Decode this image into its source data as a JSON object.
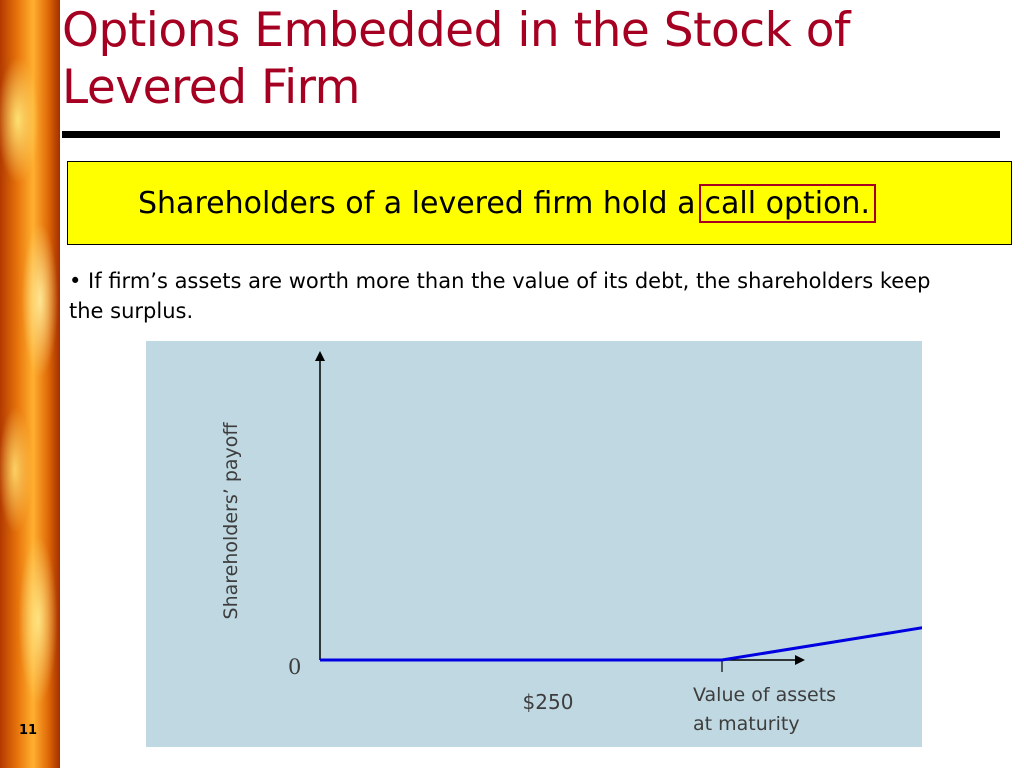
{
  "slide": {
    "number": "11",
    "title": "Options Embedded in the Stock of Levered Firm",
    "callout": {
      "text": "Shareholders of a levered firm hold a",
      "highlight": "call option",
      "highlight_color": "#a50021",
      "background": "#ffff00"
    },
    "bullet": "• If firm’s assets are worth more than the value of its debt, the shareholders keep the surplus."
  },
  "chart_data": {
    "type": "line",
    "ylabel": "Shareholders’ payoff",
    "xlabel_lines": [
      "Value of assets",
      "at maturity"
    ],
    "x_ticks": [
      {
        "value": 250,
        "label": "$250"
      }
    ],
    "y_ticks": [
      {
        "value": 0,
        "label": "0"
      }
    ],
    "xlim": [
      0,
      720
    ],
    "ylim": [
      0,
      900
    ],
    "series": [
      {
        "color": "#0000e0",
        "x": [
          0,
          250,
          720
        ],
        "y": [
          0,
          0,
          340
        ]
      }
    ],
    "background": "#c0d8e2",
    "grid": false
  }
}
